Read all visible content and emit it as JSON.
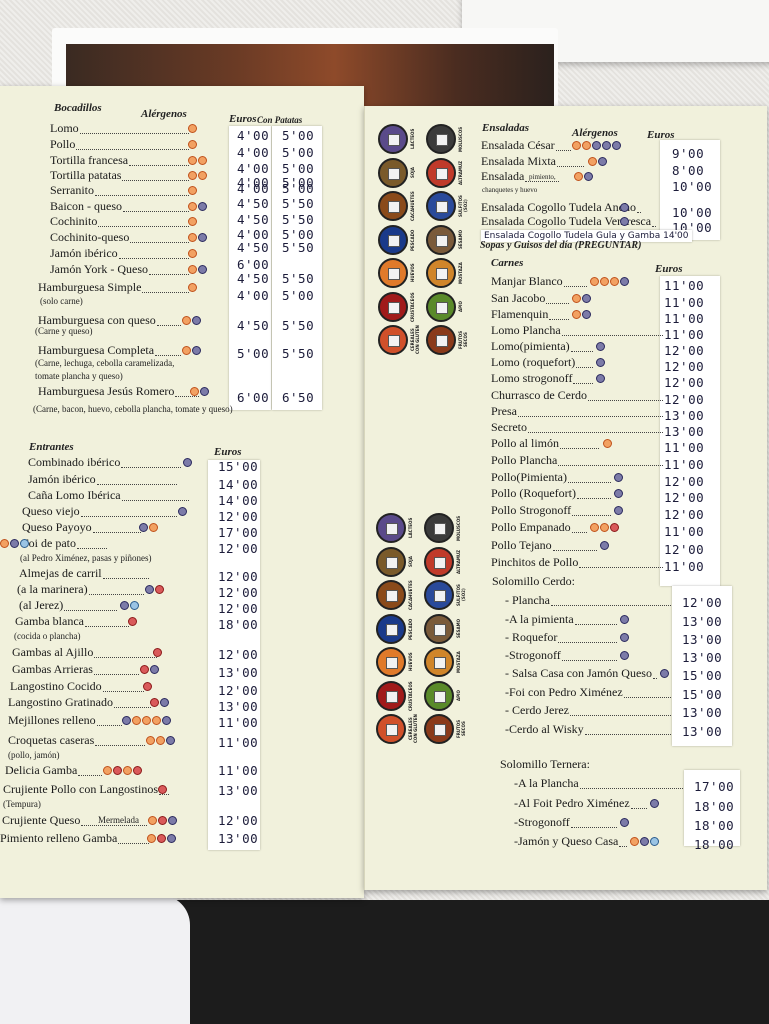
{
  "left_page": {
    "bocadillos": {
      "title": "Bocadillos",
      "allergens_label": "Alérgenos",
      "euros_label": "Euros",
      "con_patatas_label": "Con Patatas",
      "items": [
        {
          "name": "Lomo",
          "p1": "4'00",
          "p2": "5'00",
          "icons": [
            "o"
          ]
        },
        {
          "name": "Pollo",
          "p1": "4'00",
          "p2": "5'00",
          "icons": [
            "o"
          ]
        },
        {
          "name": "Tortilla francesa",
          "p1": "4'00",
          "p2": "5'00",
          "icons": [
            "o",
            "o"
          ]
        },
        {
          "name": "Tortilla patatas",
          "p1": "4'00",
          "p2": "5'00",
          "icons": [
            "o",
            "o"
          ]
        },
        {
          "name": "Serranito",
          "p1": "4'00",
          "p2": "5'00",
          "icons": [
            "o"
          ]
        },
        {
          "name": "Baicon - queso",
          "p1": "4'50",
          "p2": "5'50",
          "icons": [
            "o",
            "n"
          ]
        },
        {
          "name": "Cochinito",
          "p1": "4'50",
          "p2": "5'50",
          "icons": [
            "o"
          ]
        },
        {
          "name": "Cochinito-queso",
          "p1": "4'00",
          "p2": "5'00",
          "icons": [
            "o",
            "n"
          ]
        },
        {
          "name": "Jamón ibérico",
          "p1": "4'50",
          "p2": "5'50",
          "icons": [
            "o"
          ]
        },
        {
          "name": "Jamón York - Queso",
          "p1": "6'00",
          "p2": "",
          "icons": [
            "o",
            "n"
          ]
        },
        {
          "name": "Hamburguesa Simple",
          "p1": "4'50",
          "p2": "5'50",
          "icons": [
            "o"
          ]
        },
        {
          "name": "Hamburguesa con queso",
          "p1": "4'50",
          "p2": "5'50",
          "icons": [
            "o",
            "n"
          ]
        },
        {
          "name": "Hamburguesa  Completa",
          "p1": "5'00",
          "p2": "5'50",
          "icons": [
            "o",
            "n"
          ]
        },
        {
          "name": "Hamburguesa Jesús Romero",
          "p1": "6'00",
          "p2": "6'50",
          "icons": [
            "o",
            "n"
          ]
        }
      ],
      "notes": [
        "(solo carne)",
        "(Carne y queso)",
        "(Carne, lechuga, cebolla caramelizada,",
        "tomate plancha y queso)",
        "(Carne, bacon, huevo, cebolla plancha, tomate y queso)"
      ],
      "p1_extra": "4'00",
      "p2_extra": "5'00"
    },
    "entrantes": {
      "title": "Entrantes",
      "euros_label": "Euros",
      "items": [
        {
          "name": "Combinado ibérico",
          "price": "15'00",
          "icons": [
            "n"
          ]
        },
        {
          "name": "Jamón ibérico",
          "price": "14'00",
          "icons": []
        },
        {
          "name": "Caña Lomo Ibérica",
          "price": "14'00",
          "icons": []
        },
        {
          "name": "Queso viejo",
          "price": "12'00",
          "icons": [
            "n"
          ]
        },
        {
          "name": "Queso Payoyo",
          "price": "17'00",
          "icons": [
            "n",
            "o"
          ]
        },
        {
          "name": "Foi de pato",
          "price": "12'00",
          "icons": [
            "o",
            "n",
            "b"
          ]
        },
        {
          "name": "Almejas de carril",
          "price": "12'00",
          "icons": []
        },
        {
          "name": "(a la marinera)",
          "price": "12'00",
          "icons": [
            "n",
            "r"
          ]
        },
        {
          "name": "(al Jerez)",
          "price": "12'00",
          "icons": [
            "n",
            "b"
          ]
        },
        {
          "name": "Gamba blanca",
          "price": "18'00",
          "icons": [
            "r"
          ]
        },
        {
          "name": "Gambas al Ajillo",
          "price": "12'00",
          "icons": [
            "r"
          ]
        },
        {
          "name": "Gambas  Arrieras",
          "price": "13'00",
          "icons": [
            "r",
            "n"
          ]
        },
        {
          "name": "Langostino Cocido",
          "price": "12'00",
          "icons": [
            "r"
          ]
        },
        {
          "name": "Langostino Gratinado",
          "price": "13'00",
          "icons": [
            "r",
            "n"
          ]
        },
        {
          "name": "Mejillones relleno",
          "price": "11'00",
          "icons": [
            "n",
            "o",
            "o",
            "o",
            "n"
          ]
        },
        {
          "name": "Croquetas caseras",
          "price": "11'00",
          "icons": [
            "o",
            "o",
            "n"
          ]
        },
        {
          "name": "Delicia Gamba",
          "price": "11'00",
          "icons": [
            "o",
            "r",
            "o",
            "r"
          ]
        },
        {
          "name": "Crujiente Pollo con Langostinos",
          "price": "13'00",
          "icons": [
            "r"
          ]
        },
        {
          "name": "Crujiente Queso",
          "price": "12'00",
          "icons": [
            "o",
            "r",
            "n"
          ]
        },
        {
          "name": "Pimiento relleno Gamba",
          "price": "13'00",
          "icons": [
            "o",
            "r",
            "n"
          ]
        }
      ],
      "note_foi": "(al Pedro Ximénez, pasas y piñones)",
      "note_gamba": "(cocida o plancha)",
      "note_croq": "(pollo, jamón)",
      "note_tempura": "(Tempura)",
      "note_mermelada": "Mermelada"
    }
  },
  "right_page": {
    "ensaladas": {
      "title": "Ensaladas",
      "allergens_label": "Alérgenos",
      "euros_label": "Euros",
      "items": [
        {
          "name": "Ensalada César",
          "price": "9'00",
          "icons": [
            "o",
            "o",
            "n",
            "n",
            "n"
          ]
        },
        {
          "name": "Ensalada Mixta",
          "price": "8'00",
          "icons": [
            "o",
            "n"
          ]
        },
        {
          "name": "Ensalada",
          "price": "10'00",
          "icons": [
            "o",
            "n"
          ]
        },
        {
          "name": "Ensalada Cogollo Tudela Ancho",
          "price": "10'00",
          "icons": [
            "n"
          ]
        },
        {
          "name": "Ensalada Cogollo Tudela Ventresca",
          "price": "10'00",
          "icons": [
            "n"
          ]
        }
      ],
      "pimiento": "pimiento,",
      "pimiento2": "chanquetes y huevo",
      "handwritten": "Ensalada Cogollo Tudela Gula y Gamba 14'00"
    },
    "sopas_title": "Sopas y Guisos del día (PREGUNTAR)",
    "carnes": {
      "title": "Carnes",
      "euros_label": "Euros",
      "items": [
        {
          "name": "Manjar Blanco",
          "price": "11'00",
          "icons": [
            "o",
            "o",
            "o",
            "n"
          ]
        },
        {
          "name": "San Jacobo",
          "price": "11'00",
          "icons": [
            "o",
            "n"
          ]
        },
        {
          "name": "Flamenquin",
          "price": "11'00",
          "icons": [
            "o",
            "n"
          ]
        },
        {
          "name": "Lomo Plancha",
          "price": "11'00",
          "icons": []
        },
        {
          "name": "Lomo(pimienta)",
          "price": "12'00",
          "icons": [
            "n"
          ]
        },
        {
          "name": "Lomo (roquefort)",
          "price": "12'00",
          "icons": [
            "n"
          ]
        },
        {
          "name": "Lomo strogonoff",
          "price": "12'00",
          "icons": [
            "n"
          ]
        },
        {
          "name": "Churrasco de Cerdo",
          "price": "12'00",
          "icons": []
        },
        {
          "name": "Presa",
          "price": "13'00",
          "icons": []
        },
        {
          "name": "Secreto",
          "price": "13'00",
          "icons": []
        },
        {
          "name": "Pollo al limón",
          "price": "11'00",
          "icons": [
            "o"
          ]
        },
        {
          "name": "Pollo Plancha",
          "price": "11'00",
          "icons": []
        },
        {
          "name": "Pollo(Pimienta)",
          "price": "12'00",
          "icons": [
            "n"
          ]
        },
        {
          "name": "Pollo (Roquefort)",
          "price": "12'00",
          "icons": [
            "n"
          ]
        },
        {
          "name": "Pollo Strogonoff",
          "price": "12'00",
          "icons": [
            "n"
          ]
        },
        {
          "name": "Pollo Empanado",
          "price": "11'00",
          "icons": [
            "o",
            "o",
            "r"
          ]
        },
        {
          "name": "Pollo Tejano",
          "price": "12'00",
          "icons": [
            "n"
          ]
        },
        {
          "name": "Pinchitos de Pollo",
          "price": "11'00",
          "icons": []
        }
      ]
    },
    "solomillo_cerdo": {
      "title": "Solomillo Cerdo:",
      "items": [
        {
          "name": "- Plancha",
          "price": "12'00",
          "icons": []
        },
        {
          "name": "-A la pimienta",
          "price": "13'00",
          "icons": [
            "n"
          ]
        },
        {
          "name": "- Roquefor",
          "price": "13'00",
          "icons": [
            "n"
          ]
        },
        {
          "name": "-Strogonoff",
          "price": "13'00",
          "icons": [
            "n"
          ]
        },
        {
          "name": "- Salsa Casa con Jamón Queso",
          "price": "15'00",
          "icons": [
            "n"
          ]
        },
        {
          "name": "-Foi con Pedro Ximénez",
          "price": "15'00",
          "icons": []
        },
        {
          "name": "- Cerdo Jerez",
          "price": "13'00",
          "icons": []
        },
        {
          "name": "-Cerdo al Wisky",
          "price": "13'00",
          "icons": []
        }
      ]
    },
    "solomillo_ternera": {
      "title": "Solomillo Ternera:",
      "items": [
        {
          "name": "-A la Plancha",
          "price": "17'00",
          "icons": []
        },
        {
          "name": "-Al Foit Pedro Ximénez",
          "price": "18'00",
          "icons": [
            "n"
          ]
        },
        {
          "name": "-Strogonoff",
          "price": "18'00",
          "icons": [
            "n"
          ]
        },
        {
          "name": "-Jamón y Queso Casa",
          "price": "18'00",
          "icons": [
            "o",
            "n",
            "b"
          ]
        }
      ]
    },
    "legend": [
      {
        "color": "#5a4a8a",
        "label": "LÁCTEOS"
      },
      {
        "color": "#3b3b3b",
        "label": "MOLUSCOS"
      },
      {
        "color": "#7a5a2a",
        "label": "SOJA"
      },
      {
        "color": "#c03a2a",
        "label": "ALTRAMUZ"
      },
      {
        "color": "#8a4a1a",
        "label": "CACAHUETES"
      },
      {
        "color": "#2a4a9a",
        "label": "SULFITOS (SO2)"
      },
      {
        "color": "#1a3a8a",
        "label": "PESCADO"
      },
      {
        "color": "#7a5a3a",
        "label": "SÉSAMO"
      },
      {
        "color": "#e07a2a",
        "label": "HUEVOS"
      },
      {
        "color": "#d0852a",
        "label": "MOSTAZA"
      },
      {
        "color": "#a01a1a",
        "label": "CRUSTÁCEOS"
      },
      {
        "color": "#5a8a2a",
        "label": "APIO"
      },
      {
        "color": "#d0502a",
        "label": "CEREALES CON GLUTEN"
      },
      {
        "color": "#8a3a1a",
        "label": "FRUTOS SECOS"
      }
    ]
  }
}
